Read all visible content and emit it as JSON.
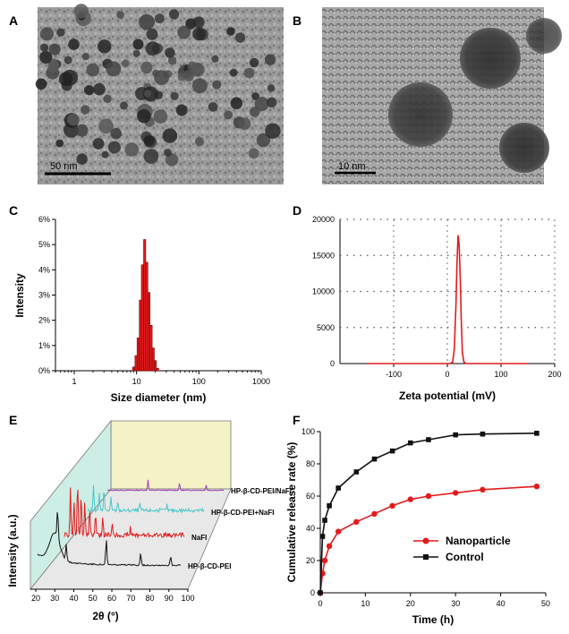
{
  "panels": {
    "a": {
      "label": "A",
      "scale_bar": "50 nm"
    },
    "b": {
      "label": "B",
      "scale_bar": "10 nm"
    },
    "c": {
      "label": "C"
    },
    "d": {
      "label": "D"
    },
    "e": {
      "label": "E"
    },
    "f": {
      "label": "F"
    }
  },
  "colors": {
    "red": "#e31a1c",
    "black": "#111111",
    "cyan": "#48c8c8",
    "purple": "#a040b0"
  },
  "chart_data": [
    {
      "panel": "C",
      "type": "bar",
      "xlabel": "Size diameter (nm)",
      "ylabel": "Intensity",
      "x_scale": "log",
      "xlim": [
        0.5,
        1000
      ],
      "ylim": [
        0,
        6
      ],
      "x_ticks": [
        "1",
        "10",
        "100",
        "1000"
      ],
      "y_ticks": [
        "0%",
        "1%",
        "2%",
        "3%",
        "4%",
        "5%",
        "6%"
      ],
      "categories": [
        9.0,
        9.8,
        10.6,
        11.5,
        12.4,
        13.5,
        14.6,
        15.8,
        17.1,
        18.5,
        20.0,
        21.7
      ],
      "values": [
        0.15,
        0.6,
        1.3,
        2.8,
        4.2,
        5.2,
        4.3,
        3.1,
        1.8,
        0.9,
        0.4,
        0.1
      ],
      "units": "percent"
    },
    {
      "panel": "D",
      "type": "line",
      "xlabel": "Zeta potential (mV)",
      "ylabel": "",
      "xlim": [
        -200,
        200
      ],
      "ylim": [
        0,
        20000
      ],
      "x_ticks": [
        "-100",
        "0",
        "100",
        "200"
      ],
      "y_ticks": [
        "0",
        "5000",
        "10000",
        "15000",
        "20000"
      ],
      "grid": true,
      "x": [
        -150,
        5,
        10,
        13,
        16,
        18,
        20,
        22,
        24,
        26,
        28,
        31,
        35,
        150
      ],
      "y": [
        0,
        0,
        200,
        2000,
        8000,
        14000,
        17800,
        16500,
        12000,
        6000,
        1500,
        200,
        0,
        0
      ]
    },
    {
      "panel": "E",
      "type": "line",
      "xlabel": "2θ (°)",
      "ylabel": "Intensity (a.u.)",
      "x_ticks": [
        "20",
        "30",
        "40",
        "50",
        "60",
        "70",
        "80",
        "90",
        "100"
      ],
      "series": [
        {
          "name": "HP-β-CD-PEI/NaFI"
        },
        {
          "name": "HP-β-CD-PEI+NaFI"
        },
        {
          "name": "NaFI"
        },
        {
          "name": "HP-β-CD-PEI"
        }
      ]
    },
    {
      "panel": "F",
      "type": "line",
      "xlabel": "Time (h)",
      "ylabel": "Cumulative release rate (%)",
      "xlim": [
        0,
        50
      ],
      "ylim": [
        0,
        100
      ],
      "x_ticks": [
        "0",
        "10",
        "20",
        "30",
        "40",
        "50"
      ],
      "y_ticks": [
        "0",
        "20",
        "40",
        "60",
        "80",
        "100"
      ],
      "x": [
        0,
        0.5,
        1,
        2,
        4,
        8,
        12,
        16,
        20,
        24,
        30,
        36,
        48
      ],
      "series": [
        {
          "name": "Nanoparticle",
          "values": [
            0,
            12,
            20,
            29,
            38,
            44,
            49,
            54,
            58,
            60,
            62,
            64,
            66
          ]
        },
        {
          "name": "Control",
          "values": [
            0,
            35,
            45,
            54,
            65,
            75,
            83,
            88,
            93,
            95,
            98,
            98.5,
            99
          ]
        }
      ]
    }
  ]
}
